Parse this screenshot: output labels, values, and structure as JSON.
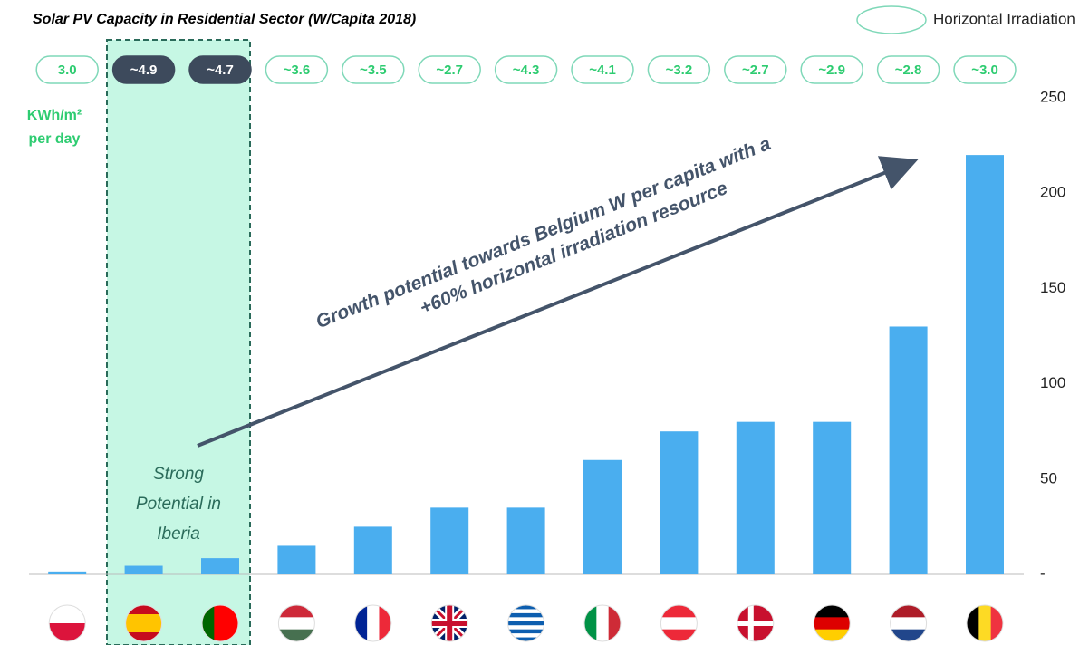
{
  "chart_data": {
    "type": "bar",
    "title": "Solar PV Capacity in Residential Sector (W/Capita 2018)",
    "legend_label": "Horizontal Irradiation",
    "irradiation_unit": [
      "KWh/m²",
      "per day"
    ],
    "irradiation_labels": [
      "3.0",
      "~4.9",
      "~4.7",
      "~3.6",
      "~3.5",
      "~2.7",
      "~4.3",
      "~4.1",
      "~3.2",
      "~2.7",
      "~2.9",
      "~2.8",
      "~3.0"
    ],
    "highlight_label": [
      "Strong",
      "Potential in",
      "Iberia"
    ],
    "annotation": [
      "Growth potential towards Belgium W per capita with a",
      "+60% horizontal irradiation resource"
    ],
    "categories": [
      null,
      null,
      null,
      null,
      null,
      null,
      null,
      null,
      null,
      null,
      null,
      null,
      null
    ],
    "values": [
      1.5,
      4.5,
      8.5,
      15,
      25,
      35,
      35,
      60,
      75,
      80,
      80,
      130,
      220
    ],
    "color": "#4aaeef",
    "ylim": [
      0,
      250
    ],
    "yticks": [
      {
        "value": 0,
        "label": "-"
      },
      50,
      100,
      150,
      200,
      250
    ],
    "grid": false
  }
}
